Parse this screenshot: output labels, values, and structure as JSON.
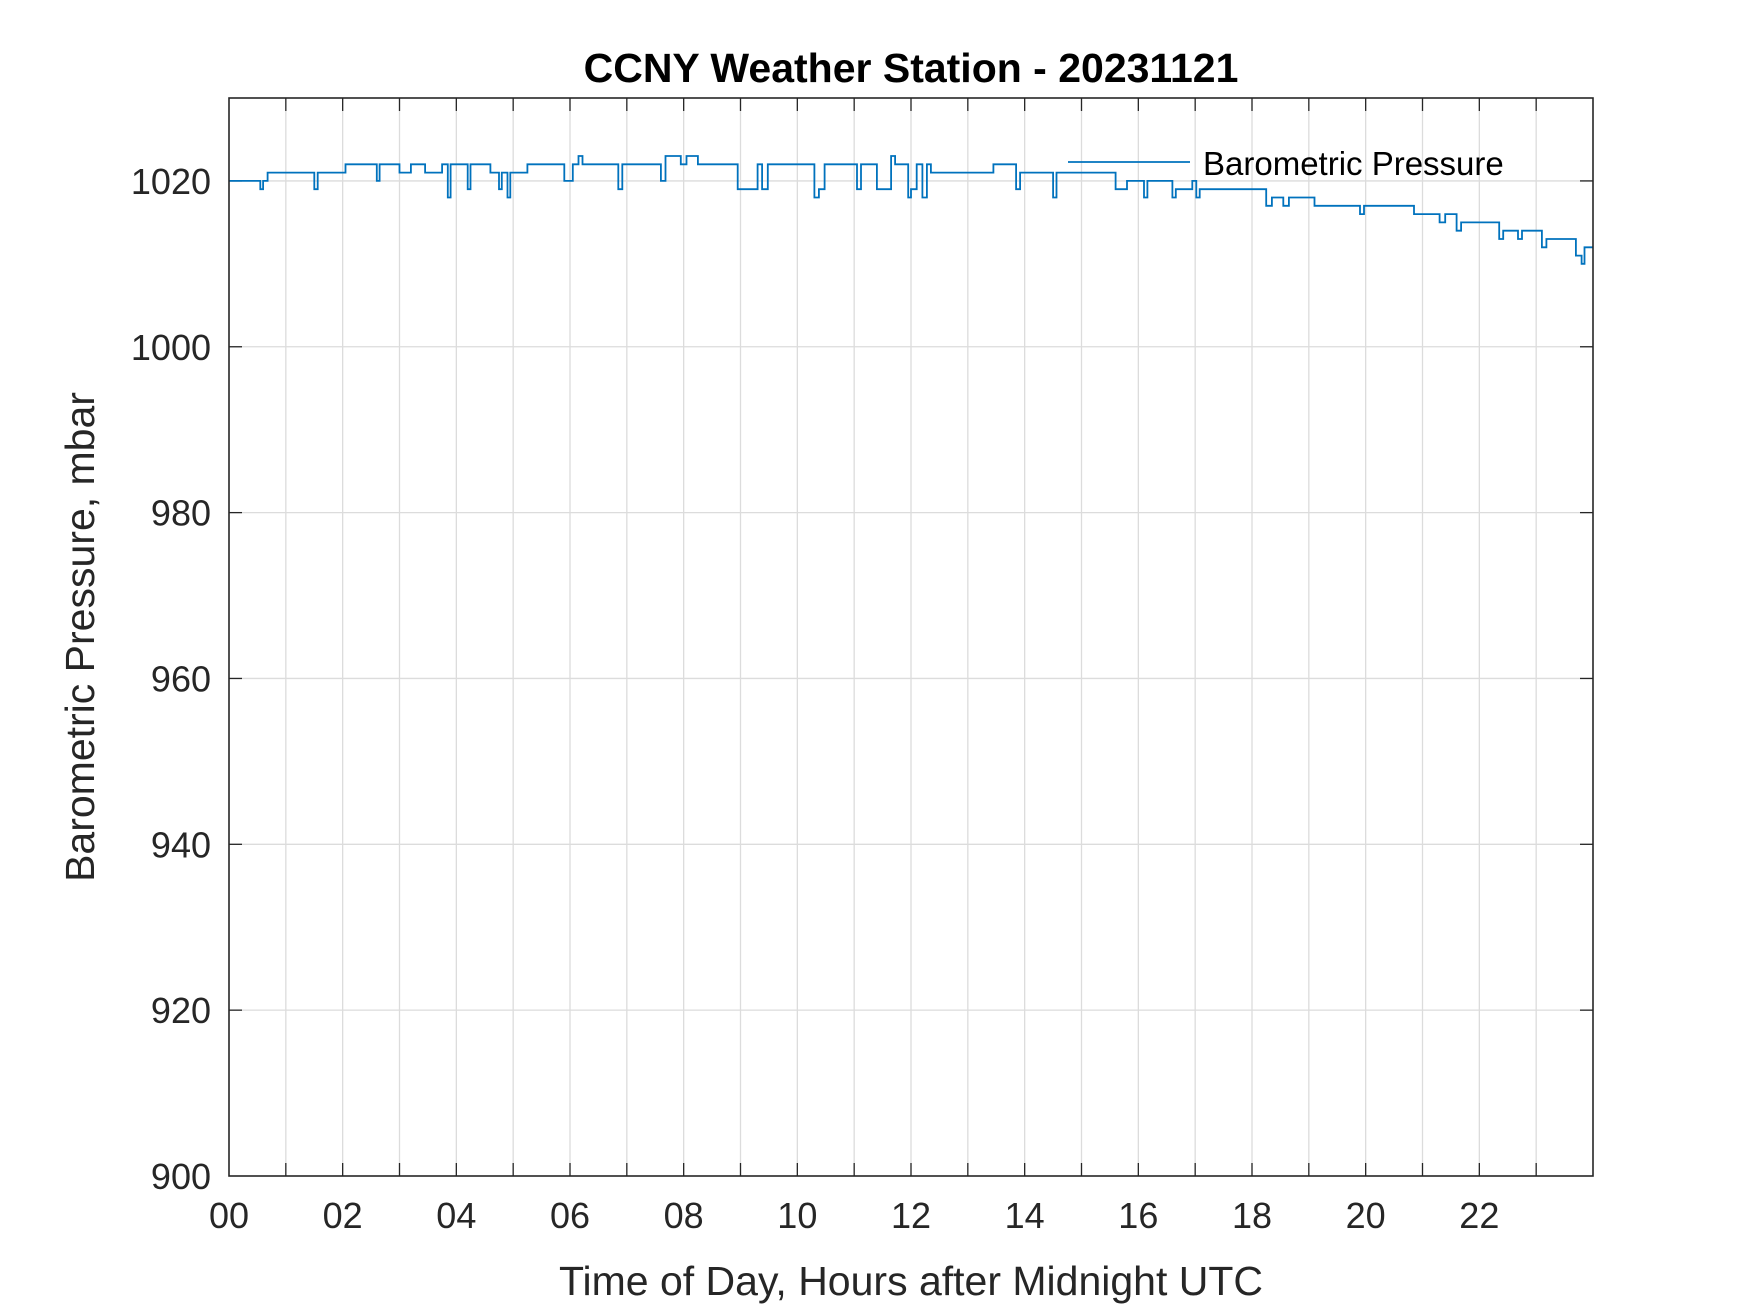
{
  "chart_data": {
    "type": "line",
    "title": "CCNY Weather Station - 20231121",
    "xlabel": "Time of Day, Hours after Midnight UTC",
    "ylabel": "Barometric Pressure, mbar",
    "xlim": [
      0,
      24
    ],
    "ylim": [
      900,
      1030
    ],
    "grid": true,
    "legend_position": "top-right",
    "x_ticks": [
      0,
      2,
      4,
      6,
      8,
      10,
      12,
      14,
      16,
      18,
      20,
      22
    ],
    "x_tick_labels": [
      "00",
      "02",
      "04",
      "06",
      "08",
      "10",
      "12",
      "14",
      "16",
      "18",
      "20",
      "22"
    ],
    "y_ticks": [
      900,
      920,
      940,
      960,
      980,
      1000,
      1020
    ],
    "y_tick_labels": [
      "900",
      "920",
      "940",
      "960",
      "980",
      "1000",
      "1020"
    ],
    "color": "#0072BD",
    "series": [
      {
        "name": "Barometric Pressure",
        "points": [
          [
            0.0,
            1020
          ],
          [
            0.55,
            1020
          ],
          [
            0.55,
            1019
          ],
          [
            0.6,
            1019
          ],
          [
            0.6,
            1020
          ],
          [
            0.68,
            1020
          ],
          [
            0.68,
            1021
          ],
          [
            1.5,
            1021
          ],
          [
            1.5,
            1019
          ],
          [
            1.56,
            1019
          ],
          [
            1.56,
            1021
          ],
          [
            2.05,
            1021
          ],
          [
            2.05,
            1022
          ],
          [
            2.6,
            1022
          ],
          [
            2.6,
            1020
          ],
          [
            2.65,
            1020
          ],
          [
            2.65,
            1022
          ],
          [
            3.0,
            1022
          ],
          [
            3.0,
            1021
          ],
          [
            3.2,
            1021
          ],
          [
            3.2,
            1022
          ],
          [
            3.45,
            1022
          ],
          [
            3.45,
            1021
          ],
          [
            3.75,
            1021
          ],
          [
            3.75,
            1022
          ],
          [
            3.85,
            1022
          ],
          [
            3.85,
            1018
          ],
          [
            3.9,
            1018
          ],
          [
            3.9,
            1022
          ],
          [
            4.2,
            1022
          ],
          [
            4.2,
            1019
          ],
          [
            4.25,
            1019
          ],
          [
            4.25,
            1022
          ],
          [
            4.6,
            1022
          ],
          [
            4.6,
            1021
          ],
          [
            4.75,
            1021
          ],
          [
            4.75,
            1019
          ],
          [
            4.8,
            1019
          ],
          [
            4.8,
            1021
          ],
          [
            4.9,
            1021
          ],
          [
            4.9,
            1018
          ],
          [
            4.95,
            1018
          ],
          [
            4.95,
            1021
          ],
          [
            5.25,
            1021
          ],
          [
            5.25,
            1022
          ],
          [
            5.9,
            1022
          ],
          [
            5.9,
            1020
          ],
          [
            6.05,
            1020
          ],
          [
            6.05,
            1022
          ],
          [
            6.15,
            1022
          ],
          [
            6.15,
            1023
          ],
          [
            6.22,
            1023
          ],
          [
            6.22,
            1022
          ],
          [
            6.85,
            1022
          ],
          [
            6.85,
            1019
          ],
          [
            6.92,
            1019
          ],
          [
            6.92,
            1022
          ],
          [
            7.6,
            1022
          ],
          [
            7.6,
            1020
          ],
          [
            7.68,
            1020
          ],
          [
            7.68,
            1023
          ],
          [
            7.95,
            1023
          ],
          [
            7.95,
            1022
          ],
          [
            8.05,
            1022
          ],
          [
            8.05,
            1023
          ],
          [
            8.25,
            1023
          ],
          [
            8.25,
            1022
          ],
          [
            8.95,
            1022
          ],
          [
            8.95,
            1019
          ],
          [
            9.3,
            1019
          ],
          [
            9.3,
            1022
          ],
          [
            9.38,
            1022
          ],
          [
            9.38,
            1019
          ],
          [
            9.48,
            1019
          ],
          [
            9.48,
            1022
          ],
          [
            10.3,
            1022
          ],
          [
            10.3,
            1018
          ],
          [
            10.38,
            1018
          ],
          [
            10.38,
            1019
          ],
          [
            10.48,
            1019
          ],
          [
            10.48,
            1022
          ],
          [
            11.05,
            1022
          ],
          [
            11.05,
            1019
          ],
          [
            11.12,
            1019
          ],
          [
            11.12,
            1022
          ],
          [
            11.4,
            1022
          ],
          [
            11.4,
            1019
          ],
          [
            11.65,
            1019
          ],
          [
            11.65,
            1023
          ],
          [
            11.72,
            1023
          ],
          [
            11.72,
            1022
          ],
          [
            11.95,
            1022
          ],
          [
            11.95,
            1018
          ],
          [
            12.0,
            1018
          ],
          [
            12.0,
            1019
          ],
          [
            12.1,
            1019
          ],
          [
            12.1,
            1022
          ],
          [
            12.2,
            1022
          ],
          [
            12.2,
            1018
          ],
          [
            12.28,
            1018
          ],
          [
            12.28,
            1022
          ],
          [
            12.35,
            1022
          ],
          [
            12.35,
            1021
          ],
          [
            13.45,
            1021
          ],
          [
            13.45,
            1022
          ],
          [
            13.85,
            1022
          ],
          [
            13.85,
            1019
          ],
          [
            13.92,
            1019
          ],
          [
            13.92,
            1021
          ],
          [
            14.5,
            1021
          ],
          [
            14.5,
            1018
          ],
          [
            14.56,
            1018
          ],
          [
            14.56,
            1021
          ],
          [
            15.6,
            1021
          ],
          [
            15.6,
            1019
          ],
          [
            15.8,
            1019
          ],
          [
            15.8,
            1020
          ],
          [
            16.1,
            1020
          ],
          [
            16.1,
            1018
          ],
          [
            16.16,
            1018
          ],
          [
            16.16,
            1020
          ],
          [
            16.6,
            1020
          ],
          [
            16.6,
            1018
          ],
          [
            16.66,
            1018
          ],
          [
            16.66,
            1019
          ],
          [
            16.95,
            1019
          ],
          [
            16.95,
            1020
          ],
          [
            17.02,
            1020
          ],
          [
            17.02,
            1018
          ],
          [
            17.08,
            1018
          ],
          [
            17.08,
            1019
          ],
          [
            18.25,
            1019
          ],
          [
            18.25,
            1017
          ],
          [
            18.35,
            1017
          ],
          [
            18.35,
            1018
          ],
          [
            18.55,
            1018
          ],
          [
            18.55,
            1017
          ],
          [
            18.65,
            1017
          ],
          [
            18.65,
            1018
          ],
          [
            19.1,
            1018
          ],
          [
            19.1,
            1017
          ],
          [
            19.9,
            1017
          ],
          [
            19.9,
            1016
          ],
          [
            19.97,
            1016
          ],
          [
            19.97,
            1017
          ],
          [
            20.85,
            1017
          ],
          [
            20.85,
            1016
          ],
          [
            21.3,
            1016
          ],
          [
            21.3,
            1015
          ],
          [
            21.4,
            1015
          ],
          [
            21.4,
            1016
          ],
          [
            21.6,
            1016
          ],
          [
            21.6,
            1014
          ],
          [
            21.68,
            1014
          ],
          [
            21.68,
            1015
          ],
          [
            22.35,
            1015
          ],
          [
            22.35,
            1013
          ],
          [
            22.42,
            1013
          ],
          [
            22.42,
            1014
          ],
          [
            22.68,
            1014
          ],
          [
            22.68,
            1013
          ],
          [
            22.75,
            1013
          ],
          [
            22.75,
            1014
          ],
          [
            23.1,
            1014
          ],
          [
            23.1,
            1012
          ],
          [
            23.18,
            1012
          ],
          [
            23.18,
            1013
          ],
          [
            23.7,
            1013
          ],
          [
            23.7,
            1011
          ],
          [
            23.8,
            1011
          ],
          [
            23.8,
            1010
          ],
          [
            23.85,
            1010
          ],
          [
            23.85,
            1012
          ],
          [
            24.0,
            1012
          ]
        ]
      }
    ]
  }
}
